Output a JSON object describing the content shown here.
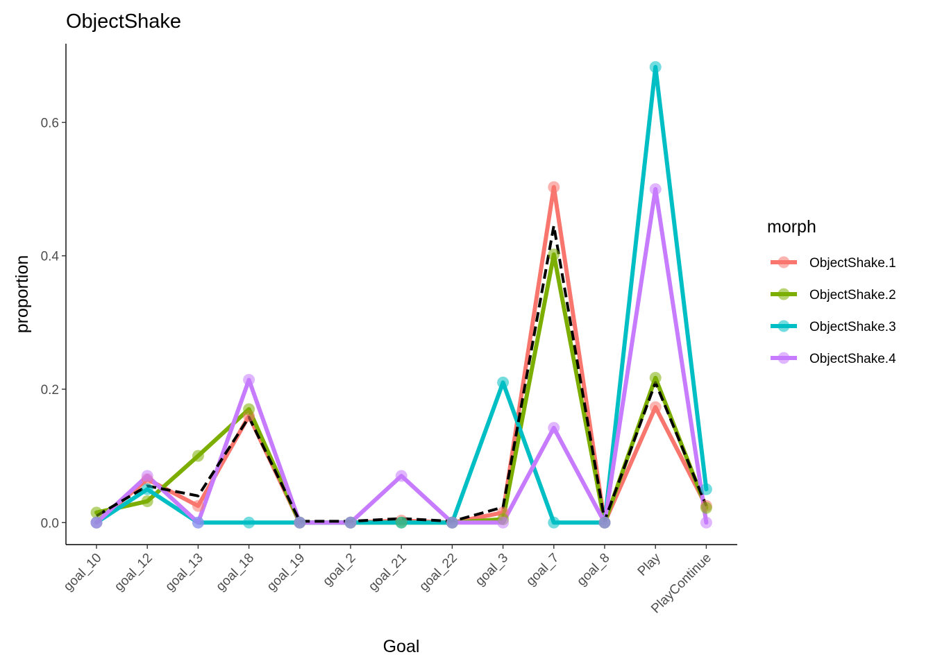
{
  "chart_data": {
    "type": "line",
    "title": "ObjectShake",
    "xlabel": "Goal",
    "ylabel": "proportion",
    "categories": [
      "goal_10",
      "goal_12",
      "goal_13",
      "goal_18",
      "goal_19",
      "goal_2",
      "goal_21",
      "goal_22",
      "goal_3",
      "goal_7",
      "goal_8",
      "Play",
      "PlayContinue"
    ],
    "ylim": [
      -0.033,
      0.718
    ],
    "yticks": [
      0.0,
      0.2,
      0.4,
      0.6
    ],
    "ytick_labels": [
      "0.0",
      "0.2",
      "0.4",
      "0.6"
    ],
    "grid": false,
    "legend": {
      "title": "morph",
      "position": "right"
    },
    "series": [
      {
        "name": "ObjectShake.1",
        "color": "#F8766D",
        "values": [
          0.0,
          0.065,
          0.025,
          0.16,
          0.0,
          0.0,
          0.003,
          0.0,
          0.015,
          0.503,
          0.0,
          0.173,
          0.025
        ]
      },
      {
        "name": "ObjectShake.2",
        "color": "#7CAE00",
        "values": [
          0.015,
          0.032,
          0.1,
          0.17,
          0.0,
          0.0,
          0.0,
          0.0,
          0.005,
          0.402,
          0.0,
          0.217,
          0.022
        ]
      },
      {
        "name": "ObjectShake.3",
        "color": "#00BFC4",
        "values": [
          0.0,
          0.05,
          0.0,
          0.0,
          0.0,
          0.0,
          0.0,
          0.0,
          0.21,
          0.0,
          0.0,
          0.683,
          0.05
        ]
      },
      {
        "name": "ObjectShake.4",
        "color": "#C77CFF",
        "values": [
          0.0,
          0.07,
          0.0,
          0.214,
          0.0,
          0.0,
          0.07,
          0.0,
          0.0,
          0.142,
          0.0,
          0.5,
          0.0
        ]
      }
    ],
    "reference_line": {
      "style": "dashed",
      "color": "#000000",
      "values": [
        0.01,
        0.055,
        0.04,
        0.158,
        0.002,
        0.002,
        0.006,
        0.002,
        0.023,
        0.445,
        0.003,
        0.21,
        0.025
      ]
    }
  }
}
